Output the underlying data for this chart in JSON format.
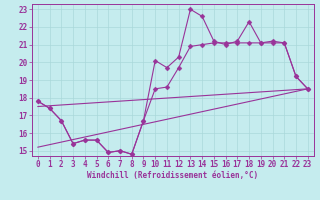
{
  "bg_color": "#c5ecee",
  "grid_color": "#aad8da",
  "line_color": "#993399",
  "xlim": [
    -0.5,
    23.5
  ],
  "ylim": [
    14.7,
    23.3
  ],
  "xticks": [
    0,
    1,
    2,
    3,
    4,
    5,
    6,
    7,
    8,
    9,
    10,
    11,
    12,
    13,
    14,
    15,
    16,
    17,
    18,
    19,
    20,
    21,
    22,
    23
  ],
  "yticks": [
    15,
    16,
    17,
    18,
    19,
    20,
    21,
    22,
    23
  ],
  "xlabel": "Windchill (Refroidissement éolien,°C)",
  "line1_x": [
    0,
    1,
    2,
    3,
    4,
    5,
    6,
    7,
    8,
    9,
    10,
    11,
    12,
    13,
    14,
    15,
    16,
    17,
    18,
    19,
    20,
    21,
    22,
    23
  ],
  "line1_y": [
    17.8,
    17.4,
    16.7,
    15.4,
    15.6,
    15.6,
    14.9,
    15.0,
    14.8,
    16.7,
    18.5,
    18.6,
    19.7,
    20.9,
    21.0,
    21.1,
    21.1,
    21.1,
    21.1,
    21.1,
    21.1,
    21.1,
    19.2,
    18.5
  ],
  "line2_x": [
    0,
    1,
    2,
    3,
    4,
    5,
    6,
    7,
    8,
    9,
    10,
    11,
    12,
    13,
    14,
    15,
    16,
    17,
    18,
    19,
    20,
    21,
    22,
    23
  ],
  "line2_y": [
    17.8,
    17.4,
    16.7,
    15.4,
    15.6,
    15.6,
    14.9,
    15.0,
    14.8,
    16.7,
    20.1,
    19.7,
    20.3,
    23.0,
    22.6,
    21.2,
    21.0,
    21.2,
    22.3,
    21.1,
    21.2,
    21.1,
    19.2,
    18.5
  ],
  "trend1_x": [
    0,
    23
  ],
  "trend1_y": [
    17.5,
    18.5
  ],
  "trend2_x": [
    0,
    23
  ],
  "trend2_y": [
    15.2,
    18.5
  ],
  "marker_size": 2.5,
  "linewidth": 0.8,
  "tick_fontsize": 5.5,
  "xlabel_fontsize": 5.5
}
